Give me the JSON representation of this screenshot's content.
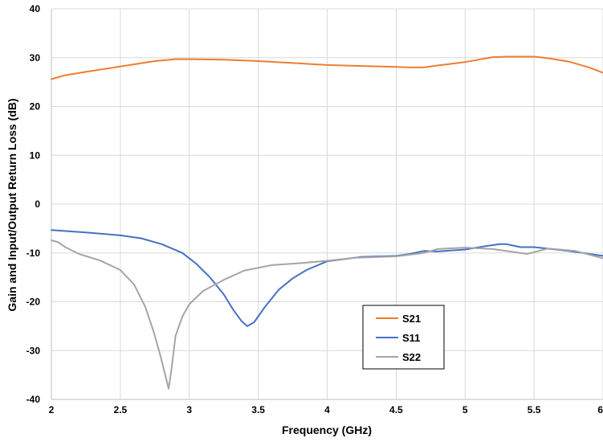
{
  "chart_data": {
    "type": "line",
    "xlabel": "Frequency (GHz)",
    "ylabel": "Gain and Input/Output Return Loss (dB)",
    "xlim": [
      2,
      6
    ],
    "ylim": [
      -40,
      40
    ],
    "x_ticks": [
      2,
      2.5,
      3,
      3.5,
      4,
      4.5,
      5,
      5.5,
      6
    ],
    "x_tick_labels": [
      "2",
      "2.5",
      "3",
      "3.5",
      "4",
      "4.5",
      "5",
      "5.5",
      "6"
    ],
    "y_ticks": [
      -40,
      -30,
      -20,
      -10,
      0,
      10,
      20,
      30,
      40
    ],
    "y_tick_labels": [
      "-40",
      "-30",
      "-20",
      "-10",
      "0",
      "10",
      "20",
      "30",
      "40"
    ],
    "grid": true,
    "legend_position": "bottom-center",
    "series": [
      {
        "name": "S21",
        "color": "#ED7D31",
        "x": [
          2.0,
          2.1,
          2.25,
          2.5,
          2.75,
          2.9,
          3.0,
          3.25,
          3.5,
          3.75,
          4.0,
          4.25,
          4.4,
          4.5,
          4.6,
          4.7,
          4.8,
          5.0,
          5.1,
          5.2,
          5.3,
          5.4,
          5.5,
          5.6,
          5.75,
          5.9,
          6.0
        ],
        "y": [
          25.6,
          26.4,
          27.1,
          28.2,
          29.3,
          29.7,
          29.7,
          29.6,
          29.3,
          28.9,
          28.5,
          28.3,
          28.2,
          28.1,
          28.0,
          28.0,
          28.4,
          29.1,
          29.6,
          30.1,
          30.2,
          30.2,
          30.2,
          29.9,
          29.2,
          28.0,
          26.9
        ]
      },
      {
        "name": "S11",
        "color": "#4472C4",
        "x": [
          2.0,
          2.25,
          2.5,
          2.65,
          2.8,
          2.95,
          3.05,
          3.15,
          3.25,
          3.32,
          3.38,
          3.42,
          3.47,
          3.55,
          3.65,
          3.75,
          3.85,
          4.0,
          4.25,
          4.5,
          4.6,
          4.7,
          4.8,
          5.0,
          5.15,
          5.25,
          5.3,
          5.4,
          5.5,
          5.75,
          6.0
        ],
        "y": [
          -5.3,
          -5.8,
          -6.4,
          -7.0,
          -8.2,
          -10.0,
          -12.2,
          -15.0,
          -18.5,
          -21.7,
          -24.0,
          -25.0,
          -24.2,
          -21.0,
          -17.5,
          -15.2,
          -13.5,
          -11.7,
          -10.8,
          -10.6,
          -10.2,
          -9.6,
          -9.7,
          -9.3,
          -8.6,
          -8.2,
          -8.2,
          -8.8,
          -8.8,
          -9.6,
          -10.6
        ]
      },
      {
        "name": "S22",
        "color": "#A5A5A5",
        "x": [
          2.0,
          2.05,
          2.1,
          2.2,
          2.35,
          2.5,
          2.6,
          2.68,
          2.74,
          2.79,
          2.83,
          2.85,
          2.87,
          2.9,
          2.95,
          3.0,
          3.1,
          3.25,
          3.4,
          3.6,
          3.8,
          4.0,
          4.2,
          4.5,
          4.7,
          4.8,
          5.0,
          5.2,
          5.3,
          5.45,
          5.6,
          5.8,
          6.0
        ],
        "y": [
          -7.4,
          -7.8,
          -8.8,
          -10.2,
          -11.5,
          -13.5,
          -16.5,
          -21.0,
          -26.0,
          -31.0,
          -35.5,
          -37.8,
          -34.0,
          -27.0,
          -23.0,
          -20.5,
          -17.8,
          -15.5,
          -13.6,
          -12.5,
          -12.1,
          -11.6,
          -11.0,
          -10.7,
          -10.0,
          -9.2,
          -8.9,
          -9.2,
          -9.6,
          -10.2,
          -9.1,
          -9.6,
          -11.1
        ]
      }
    ]
  }
}
